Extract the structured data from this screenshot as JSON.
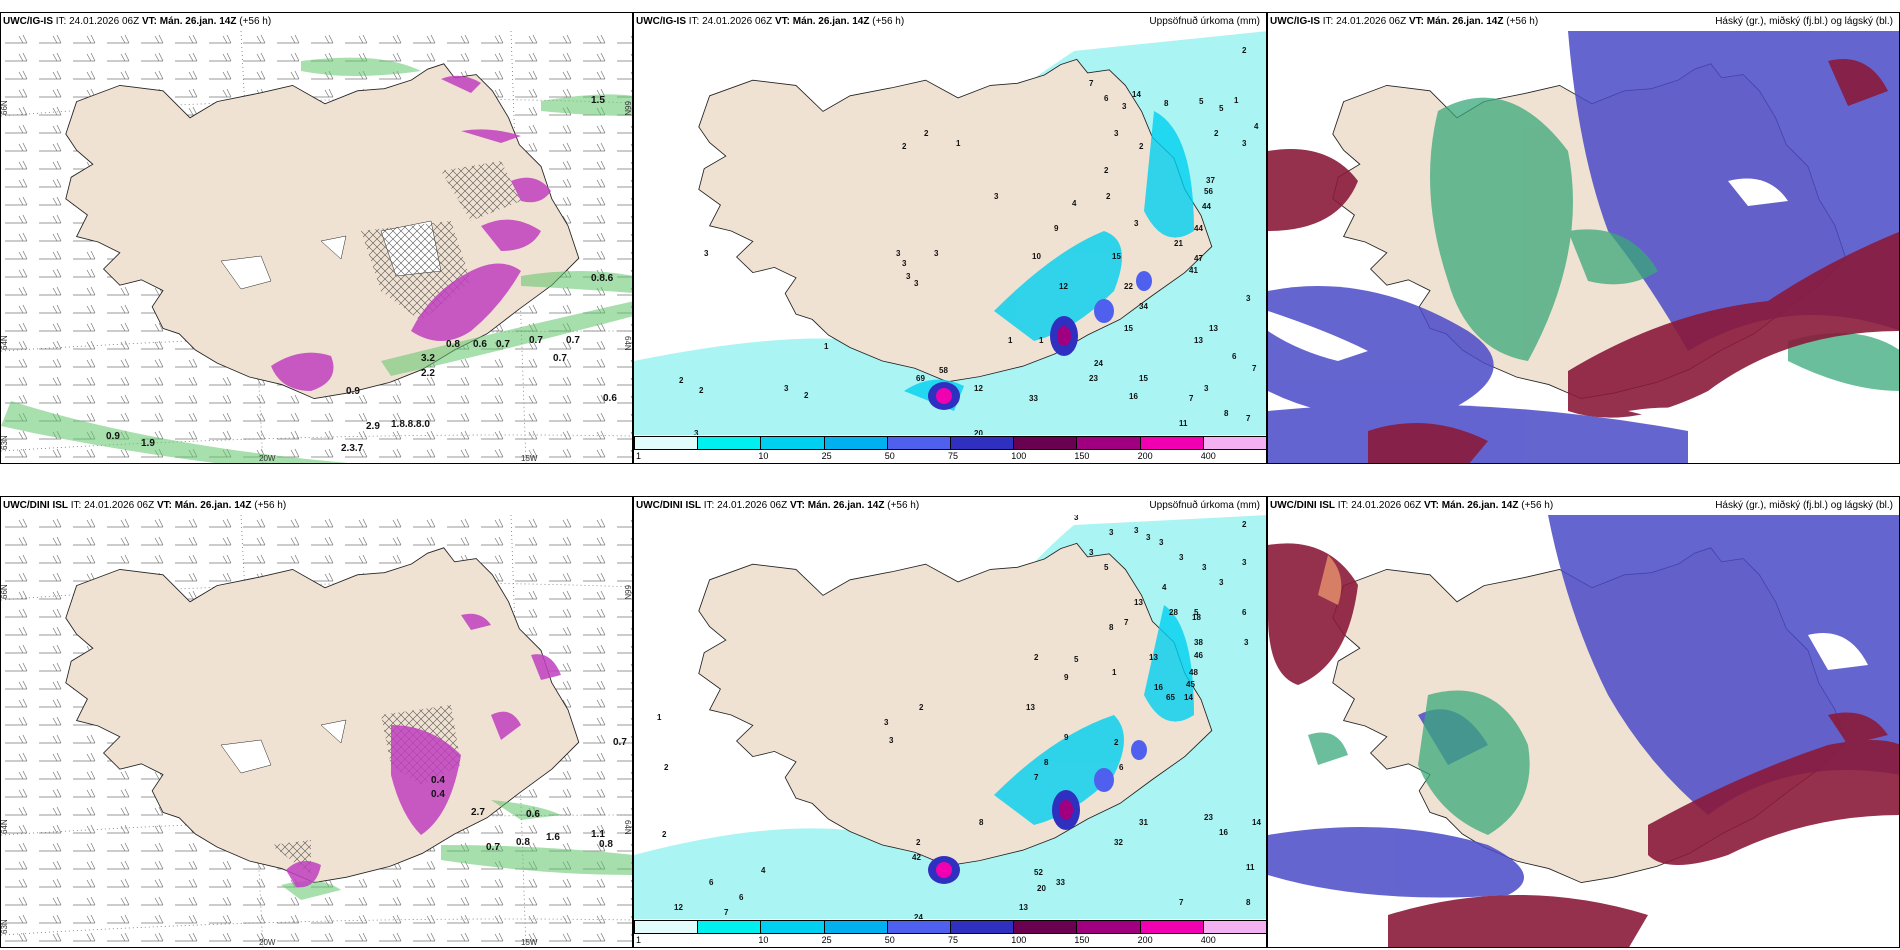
{
  "panels": [
    {
      "model": "UWC/IG-IS",
      "it_label": "IT:",
      "it": "24.01.2026 06Z",
      "vt_label": "VT:",
      "vt": "Mán. 26.jan. 14Z",
      "lead": "(+56 h)",
      "right_title": "",
      "grid_labels": {
        "lat66": "66N",
        "lat64": "64N",
        "lat63": "63N",
        "lon20": "20W",
        "lon15": "15W",
        "lat66e": "66N",
        "lat64e": "64N"
      },
      "values": [
        "1.5",
        "0.8.6",
        "0.7",
        "0.7",
        "0.7",
        "0.7",
        "0.8",
        "0.6",
        "0.6",
        "0.9",
        "1.9",
        "2.9",
        "1.8.8.8.0",
        "2.3.7",
        "3.2",
        "2.2",
        "0.9"
      ]
    },
    {
      "model": "UWC/IG-IS",
      "it_label": "IT:",
      "it": "24.01.2026 06Z",
      "vt_label": "VT:",
      "vt": "Mán. 26.jan. 14Z",
      "lead": "(+56 h)",
      "right_title": "Uppsöfnuð úrkoma (mm)",
      "values": [
        "2",
        "7",
        "6",
        "3",
        "14",
        "8",
        "5",
        "1",
        "4",
        "5",
        "3",
        "2",
        "2",
        "3",
        "2",
        "1",
        "3",
        "9",
        "4",
        "2",
        "3",
        "37",
        "56",
        "44",
        "44",
        "21",
        "47",
        "41",
        "3",
        "10",
        "12",
        "15",
        "22",
        "34",
        "13",
        "15",
        "13",
        "24",
        "6",
        "7",
        "15",
        "16",
        "7",
        "8",
        "7",
        "3",
        "1",
        "12",
        "23",
        "33",
        "2",
        "2",
        "1",
        "2",
        "2",
        "3",
        "2",
        "69",
        "58",
        "20",
        "1",
        "11",
        "3",
        "3",
        "3",
        "3",
        "3",
        "3",
        "3"
      ],
      "colorbar": [
        "1",
        "10",
        "25",
        "50",
        "75",
        "100",
        "150",
        "200",
        "400"
      ]
    },
    {
      "model": "UWC/IG-IS",
      "it_label": "IT:",
      "it": "24.01.2026 06Z",
      "vt_label": "VT:",
      "vt": "Mán. 26.jan. 14Z",
      "lead": "(+56 h)",
      "right_title": "Háský (gr.), miðský (fj.bl.) og lágský (bl.)"
    },
    {
      "model": "UWC/DINI ISL",
      "it_label": "IT:",
      "it": "24.01.2026 06Z",
      "vt_label": "VT:",
      "vt": "Mán. 26.jan. 14Z",
      "lead": "(+56 h)",
      "right_title": "",
      "grid_labels": {
        "lat66": "66N",
        "lat64": "64N",
        "lat63": "63N",
        "lon20": "20W",
        "lon15": "15W",
        "lat66e": "66N",
        "lat64e": "64N"
      },
      "values": [
        "0.7",
        "0.6",
        "1.1",
        "0.8",
        "1.6",
        "0.8",
        "0.7",
        "2.7",
        "0.4",
        "0.4"
      ]
    },
    {
      "model": "UWC/DINI ISL",
      "it_label": "IT:",
      "it": "24.01.2026 06Z",
      "vt_label": "VT:",
      "vt": "Mán. 26.jan. 14Z",
      "lead": "(+56 h)",
      "right_title": "Uppsöfnuð úrkoma (mm)",
      "values": [
        "3",
        "2",
        "3",
        "3",
        "3",
        "3",
        "3",
        "5",
        "3",
        "3",
        "3",
        "3",
        "13",
        "8",
        "28",
        "18",
        "7",
        "5",
        "4",
        "38",
        "46",
        "48",
        "45",
        "16",
        "65",
        "14",
        "13",
        "9",
        "5",
        "1",
        "2",
        "6",
        "3",
        "13",
        "9",
        "2",
        "8",
        "6",
        "7",
        "2",
        "42",
        "52",
        "20",
        "33",
        "32",
        "31",
        "23",
        "16",
        "14",
        "11",
        "8",
        "7",
        "13",
        "8",
        "12",
        "6",
        "7",
        "6",
        "4",
        "2",
        "1",
        "2",
        "24",
        "3",
        "2",
        "3"
      ],
      "colorbar": [
        "1",
        "10",
        "25",
        "50",
        "75",
        "100",
        "150",
        "200",
        "400"
      ]
    },
    {
      "model": "UWC/DINI ISL",
      "it_label": "IT:",
      "it": "24.01.2026 06Z",
      "vt_label": "VT:",
      "vt": "Mán. 26.jan. 14Z",
      "lead": "(+56 h)",
      "right_title": "Háský (gr.), miðský (fj.bl.) og lágský (bl.)"
    }
  ],
  "colors": {
    "land": "#f0e2d2",
    "precip": [
      "#e2fbfb",
      "#00f0f0",
      "#00d0ef",
      "#00b0ef",
      "#4f60ef",
      "#3030c0",
      "#6a0050",
      "#a00080",
      "#f000b0",
      "#f4b0f0"
    ],
    "wind_green": "#2e9e40",
    "high_cloud": "#3aa87a",
    "mid_cloud": "#4a4ac8",
    "low_cloud": "#8a1a3a"
  }
}
